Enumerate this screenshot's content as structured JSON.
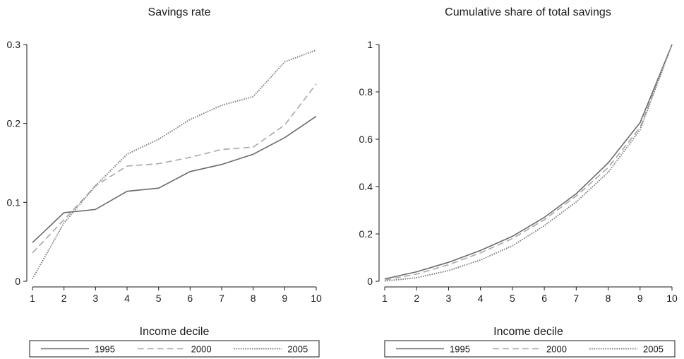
{
  "chart_data": [
    {
      "type": "line",
      "title": "Savings rate",
      "xlabel": "Income decile",
      "ylabel": "",
      "x": [
        1,
        2,
        3,
        4,
        5,
        6,
        7,
        8,
        9,
        10
      ],
      "xlim": [
        1,
        10
      ],
      "ylim": [
        0,
        0.3
      ],
      "xticks": [
        "1",
        "2",
        "3",
        "4",
        "5",
        "6",
        "7",
        "8",
        "9",
        "10"
      ],
      "yticks": [
        "0",
        "0.1",
        "0.2",
        "0.3"
      ],
      "grid": false,
      "legend_position": "bottom",
      "series": [
        {
          "name": "1995",
          "style": "solid",
          "color": "#6b6b6b",
          "values": [
            0.049,
            0.087,
            0.091,
            0.114,
            0.118,
            0.139,
            0.148,
            0.161,
            0.182,
            0.209
          ]
        },
        {
          "name": "2000",
          "style": "dashed",
          "color": "#a8a8a8",
          "values": [
            0.036,
            0.078,
            0.121,
            0.146,
            0.149,
            0.157,
            0.167,
            0.17,
            0.198,
            0.25
          ]
        },
        {
          "name": "2005",
          "style": "dotted",
          "color": "#808080",
          "values": [
            0.003,
            0.074,
            0.121,
            0.161,
            0.18,
            0.205,
            0.223,
            0.234,
            0.278,
            0.293
          ]
        }
      ]
    },
    {
      "type": "line",
      "title": "Cumulative share of total savings",
      "xlabel": "Income decile",
      "ylabel": "",
      "x": [
        1,
        2,
        3,
        4,
        5,
        6,
        7,
        8,
        9,
        10
      ],
      "xlim": [
        1,
        10
      ],
      "ylim": [
        0,
        1
      ],
      "xticks": [
        "1",
        "2",
        "3",
        "4",
        "5",
        "6",
        "7",
        "8",
        "9",
        "10"
      ],
      "yticks": [
        "0",
        "0.2",
        "0.4",
        "0.6",
        "0.8",
        "1"
      ],
      "grid": false,
      "legend_position": "bottom",
      "series": [
        {
          "name": "1995",
          "style": "solid",
          "color": "#6b6b6b",
          "values": [
            0.01,
            0.04,
            0.08,
            0.13,
            0.19,
            0.27,
            0.37,
            0.5,
            0.67,
            1.0
          ]
        },
        {
          "name": "2000",
          "style": "dashed",
          "color": "#a8a8a8",
          "values": [
            0.005,
            0.03,
            0.07,
            0.12,
            0.18,
            0.26,
            0.36,
            0.48,
            0.65,
            1.0
          ]
        },
        {
          "name": "2005",
          "style": "dotted",
          "color": "#808080",
          "values": [
            0.001,
            0.015,
            0.045,
            0.09,
            0.15,
            0.235,
            0.335,
            0.46,
            0.64,
            1.0
          ]
        }
      ]
    }
  ]
}
